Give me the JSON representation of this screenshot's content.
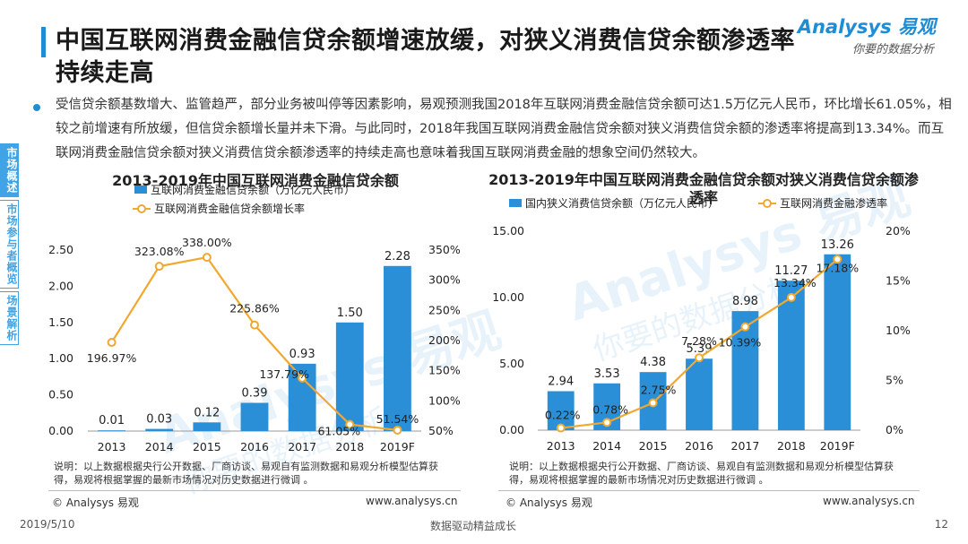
{
  "header": {
    "title": "中国互联网消费金融信贷余额增速放缓，对狭义消费信贷余额渗透率持续走高",
    "logo_brand": "Analysys 易观",
    "logo_slogan": "你要的数据分析"
  },
  "summary": "受信贷余额基数增大、监管趋严，部分业务被叫停等因素影响，易观预测我国2018年互联网消费金融信贷余额可达1.5万亿元人民币，环比增长61.05%，相较之前增速有所放缓，但信贷余额增长量并未下滑。与此同时，2018年我国互联网消费金融信贷余额对狭义消费信贷余额的渗透率将提高到13.34%。而互联网消费金融信贷余额对狭义消费信贷余额渗透率的持续走高也意味着我国互联网消费金融的想象空间仍然较大。",
  "sidenav": [
    {
      "label": "市场概述",
      "active": true
    },
    {
      "label": "市场参与者概览",
      "active": false
    },
    {
      "label": "场景解析",
      "active": false
    }
  ],
  "watermark": {
    "text1": "Analysys 易观",
    "text2": "你要的数据分析"
  },
  "chart_data": [
    {
      "type": "bar",
      "title": "2013-2019年中国互联网消费金融信贷余额",
      "categories": [
        "2013",
        "2014",
        "2015",
        "2016",
        "2017",
        "2018",
        "2019F"
      ],
      "series": [
        {
          "name": "互联网消费金融信贷余额（万亿元人民币）",
          "kind": "bar",
          "axis": "left",
          "color": "#2a8fd6",
          "values": [
            0.01,
            0.03,
            0.12,
            0.39,
            0.93,
            1.5,
            2.28
          ],
          "labels": [
            "0.01",
            "0.03",
            "0.12",
            "0.39",
            "0.93",
            "1.50",
            "2.28"
          ]
        },
        {
          "name": "互联网消费金融信贷余额增长率",
          "kind": "line",
          "axis": "right",
          "color": "#f0a830",
          "values": [
            196.97,
            323.08,
            338.0,
            225.86,
            137.79,
            61.05,
            51.54
          ],
          "labels": [
            "196.97%",
            "323.08%",
            "338.00%",
            "225.86%",
            "137.79%",
            "61.05%",
            "51.54%"
          ]
        }
      ],
      "ylim_left": [
        0,
        2.5
      ],
      "yticks_left": [
        "0.00",
        "0.50",
        "1.00",
        "1.50",
        "2.00",
        "2.50"
      ],
      "ylim_right": [
        50,
        350
      ],
      "yticks_right": [
        "50%",
        "100%",
        "150%",
        "200%",
        "250%",
        "300%",
        "350%"
      ],
      "note": "说明：以上数据根据央行公开数据、厂商访谈、易观自有监测数据和易观分析模型估算获得，易观将根据掌握的最新市场情况对历史数据进行微调 。",
      "source_left": "© Analysys 易观",
      "source_right": "www.analysys.cn"
    },
    {
      "type": "bar",
      "title": "2013-2019年中国互联网消费金融信贷余额对狭义消费信贷余额渗透率",
      "categories": [
        "2013",
        "2014",
        "2015",
        "2016",
        "2017",
        "2018",
        "2019F"
      ],
      "series": [
        {
          "name": "国内狭义消费信贷余额（万亿元人民币）",
          "kind": "bar",
          "axis": "left",
          "color": "#2a8fd6",
          "values": [
            2.94,
            3.53,
            4.38,
            5.39,
            8.98,
            11.27,
            13.26
          ],
          "labels": [
            "2.94",
            "3.53",
            "4.38",
            "5.39",
            "8.98",
            "11.27",
            "13.26"
          ]
        },
        {
          "name": "互联网消费金融渗透率",
          "kind": "line",
          "axis": "right",
          "color": "#f0a830",
          "values": [
            0.22,
            0.78,
            2.75,
            7.28,
            10.39,
            13.34,
            17.18
          ],
          "labels": [
            "0.22%",
            "0.78%",
            "2.75%",
            "7.28%",
            "10.39%",
            "13.34%",
            "17.18%"
          ]
        }
      ],
      "ylim_left": [
        0,
        15
      ],
      "yticks_left": [
        "0.00",
        "5.00",
        "10.00",
        "15.00"
      ],
      "ylim_right": [
        0,
        20
      ],
      "yticks_right": [
        "0%",
        "5%",
        "10%",
        "15%",
        "20%"
      ],
      "note": "说明：以上数据根据央行公开数据、厂商访谈、易观自有监测数据和易观分析模型估算获得，易观将根据掌握的最新市场情况对历史数据进行微调 。",
      "source_left": "© Analysys 易观",
      "source_right": "www.analysys.cn"
    }
  ],
  "footer": {
    "date": "2019/5/10",
    "slogan": "数据驱动精益成长",
    "page": "12"
  }
}
